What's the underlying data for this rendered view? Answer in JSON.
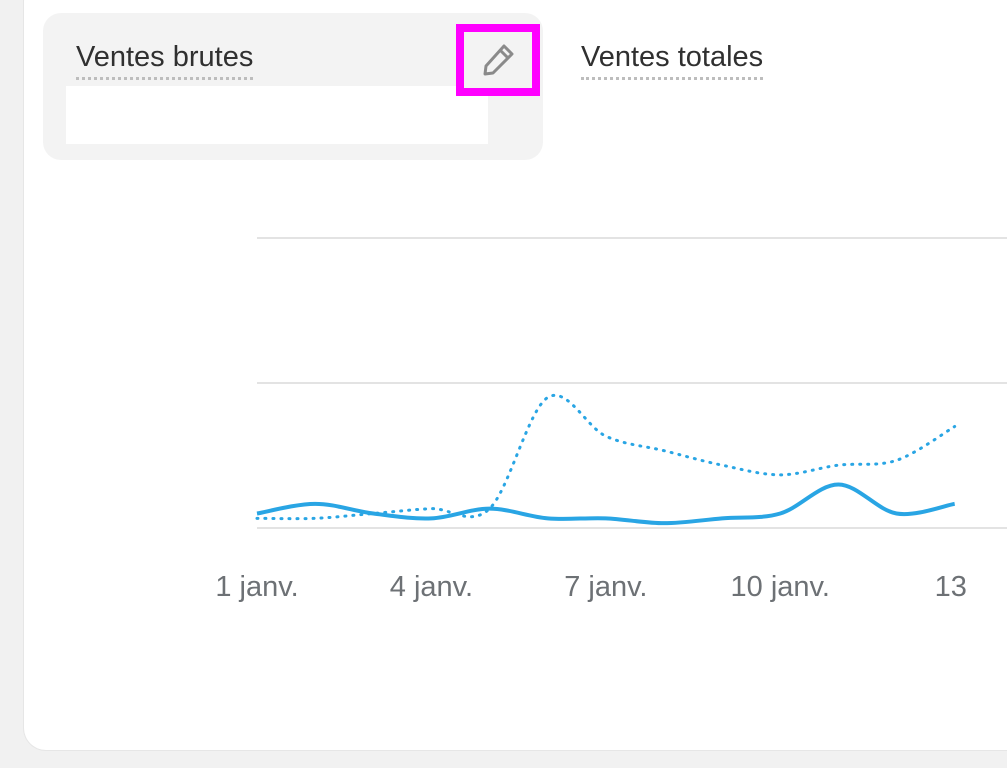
{
  "metrics": {
    "primary": {
      "title": "Ventes brutes",
      "edit_icon": "pencil-icon"
    },
    "secondary": {
      "title": "Ventes totales"
    }
  },
  "colors": {
    "series": "#29a5e4",
    "grid": "#e3e3e3",
    "highlight": "#ff00ff"
  },
  "chart_data": {
    "type": "line",
    "x_tick_labels": [
      "1 janv.",
      "4 janv.",
      "7 janv.",
      "10 janv.",
      "13"
    ],
    "series": [
      {
        "style": "solid",
        "x": [
          1,
          2,
          3,
          4,
          5,
          6,
          7,
          8,
          9,
          10,
          11,
          12,
          13
        ],
        "values": [
          0.3,
          0.5,
          0.3,
          0.2,
          0.4,
          0.2,
          0.2,
          0.1,
          0.2,
          0.3,
          0.9,
          0.3,
          0.5
        ]
      },
      {
        "style": "dotted",
        "x": [
          1,
          2,
          3,
          4,
          5,
          6,
          7,
          8,
          9,
          10,
          11,
          12,
          13
        ],
        "values": [
          0.2,
          0.2,
          0.3,
          0.4,
          0.4,
          2.7,
          1.9,
          1.6,
          1.3,
          1.1,
          1.3,
          1.4,
          2.1
        ]
      }
    ],
    "ylim": [
      0,
      6
    ],
    "xlim": [
      1,
      13.9
    ],
    "grid": true,
    "legend": "none"
  }
}
